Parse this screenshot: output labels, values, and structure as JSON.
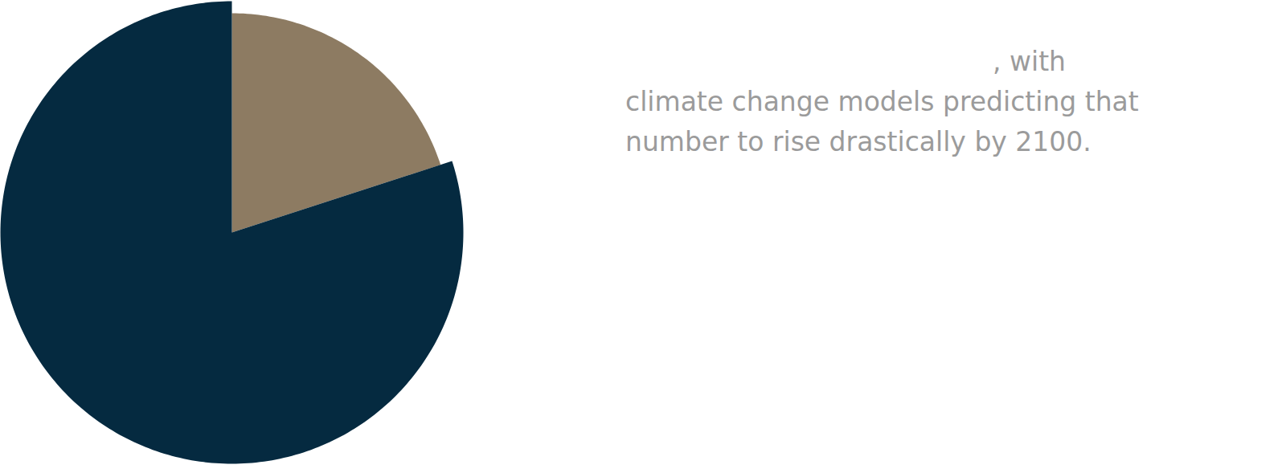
{
  "chart_data": {
    "type": "pie",
    "values": [
      20,
      80
    ],
    "colors": [
      "#8d7b62",
      "#052a40"
    ],
    "annotation": [
      ", with",
      "climate change models predicting that",
      "number to rise drastically by 2100."
    ]
  }
}
